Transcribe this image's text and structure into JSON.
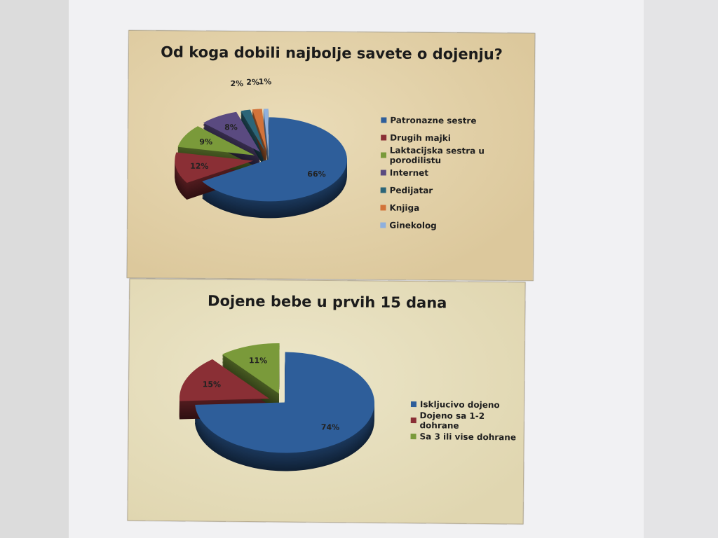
{
  "chart_data": [
    {
      "type": "pie",
      "title": "Od koga dobili najbolje savete o dojenju?",
      "legend_position": "right",
      "categories": [
        "Patronazne sestre",
        "Drugih majki",
        "Laktacijska sestra u porodilistu",
        "Internet",
        "Pedijatar",
        "Knjiga",
        "Ginekolog"
      ],
      "values": [
        66,
        12,
        9,
        8,
        2,
        2,
        1
      ],
      "labels": [
        "66%",
        "12%",
        "9%",
        "8%",
        "2%",
        "2%",
        "1%"
      ],
      "colors": [
        "#2e5e9a",
        "#8a2f35",
        "#7a9a3a",
        "#5a4a80",
        "#2c6578",
        "#d2733a",
        "#8fb0dd"
      ]
    },
    {
      "type": "pie",
      "title": "Dojene bebe u prvih 15 dana",
      "legend_position": "right",
      "categories": [
        "Iskljucivo dojeno",
        "Dojeno sa 1-2 dohrane",
        "Sa 3 ili vise dohrane"
      ],
      "values": [
        74,
        15,
        11
      ],
      "labels": [
        "74%",
        "15%",
        "11%"
      ],
      "colors": [
        "#2e5e9a",
        "#8a2f35",
        "#7a9a3a"
      ]
    }
  ]
}
